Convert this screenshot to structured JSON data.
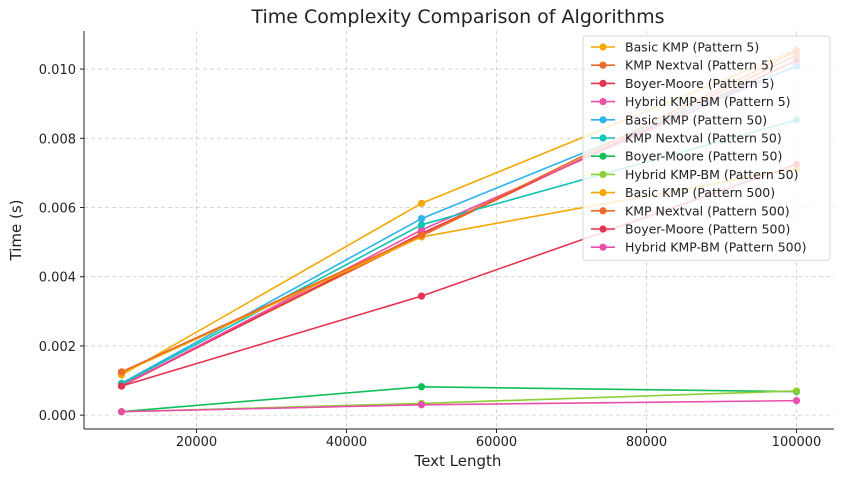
{
  "chart_data": {
    "type": "line",
    "title": "Time Complexity Comparison of Algorithms",
    "xlabel": "Text Length",
    "ylabel": "Time (s)",
    "x": [
      10000,
      50000,
      100000
    ],
    "xlim": [
      5000,
      105000
    ],
    "ylim": [
      -0.0004,
      0.0111
    ],
    "xticks": [
      20000,
      40000,
      60000,
      80000,
      100000
    ],
    "xtick_labels": [
      "20000",
      "40000",
      "60000",
      "80000",
      "100000"
    ],
    "yticks": [
      0.0,
      0.002,
      0.004,
      0.006,
      0.008,
      0.01
    ],
    "ytick_labels": [
      "0.000",
      "0.002",
      "0.004",
      "0.006",
      "0.008",
      "0.010"
    ],
    "grid": true,
    "legend_position": "top-right",
    "series": [
      {
        "name": "Basic KMP (Pattern 5)",
        "color": "#f5a800",
        "values": [
          0.00116,
          0.00612,
          0.01055
        ]
      },
      {
        "name": "KMP Nextval (Pattern 5)",
        "color": "#ec6a2b",
        "values": [
          0.00087,
          0.00518,
          0.0104
        ]
      },
      {
        "name": "Boyer-Moore (Pattern 5)",
        "color": "#e5334f",
        "values": [
          0.00084,
          0.00525,
          0.01025
        ]
      },
      {
        "name": "Hybrid KMP-BM (Pattern 5)",
        "color": "#ea4fa9",
        "values": [
          0.00085,
          0.00535,
          0.0101
        ]
      },
      {
        "name": "Basic KMP (Pattern 50)",
        "color": "#2eb3ec",
        "values": [
          0.00092,
          0.00568,
          0.01008
        ]
      },
      {
        "name": "KMP Nextval (Pattern 50)",
        "color": "#10c4b7",
        "values": [
          0.0009,
          0.0055,
          0.00853
        ]
      },
      {
        "name": "Boyer-Moore (Pattern 50)",
        "color": "#0fbf5a",
        "values": [
          0.0001,
          0.00082,
          0.00068
        ]
      },
      {
        "name": "Hybrid KMP-BM (Pattern 50)",
        "color": "#8bcf35",
        "values": [
          0.0001,
          0.00034,
          0.0007
        ]
      },
      {
        "name": "Basic KMP (Pattern 500)",
        "color": "#f5a800",
        "values": [
          0.00122,
          0.00515,
          0.00712
        ]
      },
      {
        "name": "KMP Nextval (Pattern 500)",
        "color": "#ec6a2b",
        "values": [
          0.00125,
          0.0052,
          0.01052
        ]
      },
      {
        "name": "Boyer-Moore (Pattern 500)",
        "color": "#e5334f",
        "values": [
          0.00084,
          0.00344,
          0.00725
        ]
      },
      {
        "name": "Hybrid KMP-BM (Pattern 500)",
        "color": "#ea4fa9",
        "values": [
          0.0001,
          0.0003,
          0.00042
        ]
      }
    ]
  }
}
